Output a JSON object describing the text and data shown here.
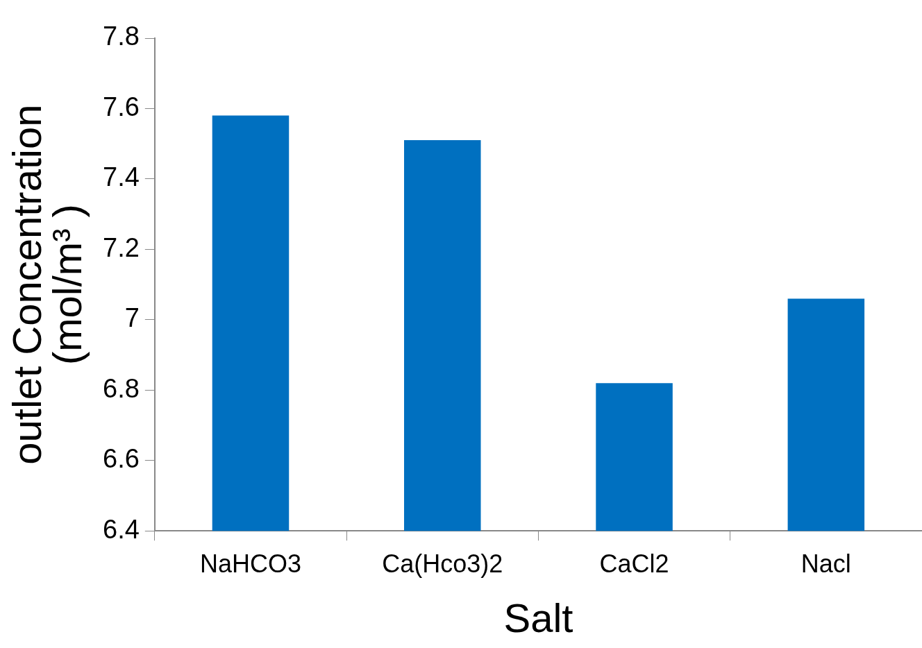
{
  "chart_data": {
    "type": "bar",
    "xlabel": "Salt",
    "ylabel": "outlet Concentration (mol/m³ )",
    "categories": [
      "NaHCO3",
      "Ca(Hco3)2",
      "CaCl2",
      "Nacl"
    ],
    "values": [
      7.58,
      7.51,
      6.82,
      7.06
    ],
    "color": "#0070c0",
    "ylim": [
      6.4,
      7.8
    ],
    "yticks": [
      6.4,
      6.6,
      6.8,
      7,
      7.2,
      7.4,
      7.6,
      7.8
    ],
    "grid": false,
    "legend": false
  }
}
